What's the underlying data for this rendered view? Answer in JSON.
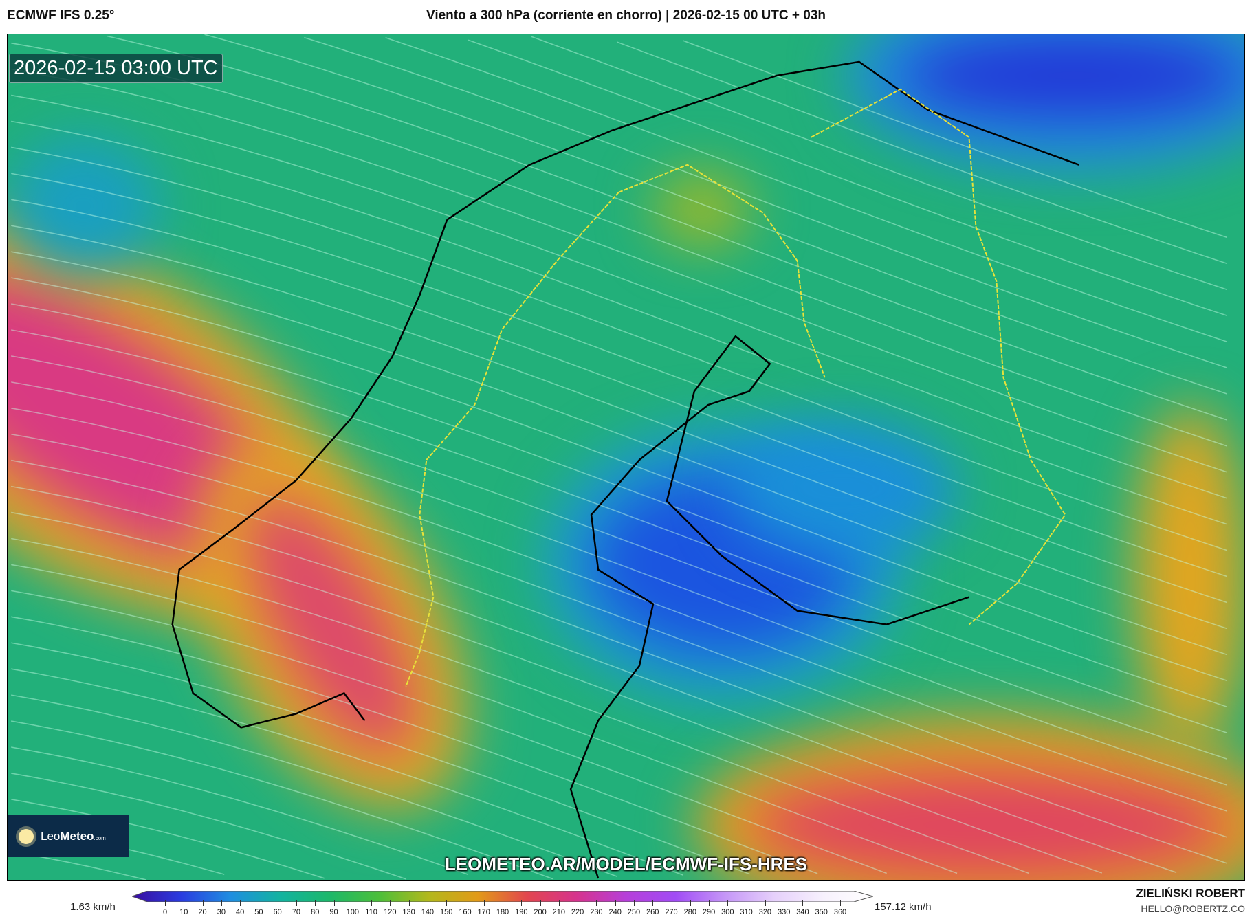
{
  "header": {
    "model": "ECMWF IFS 0.25°",
    "title": "Viento a 300 hPa (corriente en chorro) | 2026-02-15 00 UTC + 03h"
  },
  "map": {
    "valid_time": "2026-02-15 03:00 UTC",
    "url": "LEOMETEO.AR/MODEL/ECMWF-IFS-HRES",
    "logo": {
      "name": "LeoMeteo",
      "part1": "Leo",
      "part2": "Meteo",
      "suffix": ".com"
    }
  },
  "colorbar": {
    "min_label": "1.63 km/h",
    "max_label": "157.12 km/h",
    "ticks": [
      "0",
      "10",
      "20",
      "30",
      "40",
      "50",
      "60",
      "70",
      "80",
      "90",
      "100",
      "110",
      "120",
      "130",
      "140",
      "150",
      "160",
      "170",
      "180",
      "190",
      "200",
      "210",
      "220",
      "230",
      "240",
      "250",
      "260",
      "270",
      "280",
      "290",
      "300",
      "310",
      "320",
      "330",
      "340",
      "350",
      "360"
    ],
    "colors": [
      "#3a0d9e",
      "#2a3ce0",
      "#1f8ee0",
      "#13b3a0",
      "#1cb86a",
      "#4cbf3a",
      "#b2b81c",
      "#e29a18",
      "#e2464f",
      "#d6338d",
      "#b63fd9",
      "#a14cf5",
      "#c596f7",
      "#e6d0fb",
      "#f7f1fd",
      "#ffffff"
    ]
  },
  "footer": {
    "author": "ZIELIŃSKI ROBERT",
    "email": "HELLO@ROBERTZ.CO"
  }
}
